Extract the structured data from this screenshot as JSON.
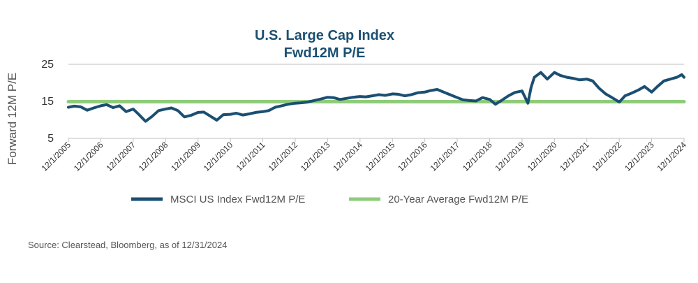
{
  "chart_data": {
    "type": "line",
    "title_lines": [
      "U.S. Large Cap Index",
      "Fwd12M P/E"
    ],
    "ylabel": "Forward 12M P/E",
    "xlabel": "",
    "y_ticks": [
      "25",
      "15",
      "5"
    ],
    "ylim": [
      5,
      25
    ],
    "x_tick_labels": [
      "12/1/2005",
      "12/1/2006",
      "12/1/2007",
      "12/1/2008",
      "12/1/2009",
      "12/1/2010",
      "12/1/2011",
      "12/1/2012",
      "12/1/2013",
      "12/1/2014",
      "12/1/2015",
      "12/1/2016",
      "12/1/2017",
      "12/1/2018",
      "12/1/2019",
      "12/1/2020",
      "12/1/2021",
      "12/1/2022",
      "12/1/2023",
      "12/1/2024"
    ],
    "grid": "horizontal",
    "legend_position": "bottom",
    "series": [
      {
        "name": "MSCI US Index Fwd12M P/E",
        "color": "#1b4f72",
        "x": [
          2005.92,
          2006.1,
          2006.3,
          2006.5,
          2006.7,
          2006.92,
          2007.1,
          2007.3,
          2007.5,
          2007.7,
          2007.92,
          2008.1,
          2008.3,
          2008.5,
          2008.7,
          2008.92,
          2009.1,
          2009.3,
          2009.5,
          2009.7,
          2009.92,
          2010.1,
          2010.3,
          2010.5,
          2010.7,
          2010.92,
          2011.1,
          2011.3,
          2011.5,
          2011.7,
          2011.92,
          2012.1,
          2012.3,
          2012.5,
          2012.7,
          2012.92,
          2013.1,
          2013.3,
          2013.5,
          2013.7,
          2013.92,
          2014.1,
          2014.3,
          2014.5,
          2014.7,
          2014.92,
          2015.1,
          2015.3,
          2015.5,
          2015.7,
          2015.92,
          2016.1,
          2016.3,
          2016.5,
          2016.7,
          2016.92,
          2017.1,
          2017.3,
          2017.5,
          2017.7,
          2017.92,
          2018.1,
          2018.3,
          2018.5,
          2018.7,
          2018.92,
          2019.1,
          2019.3,
          2019.5,
          2019.7,
          2019.92,
          2020.1,
          2020.2,
          2020.3,
          2020.5,
          2020.7,
          2020.92,
          2021.1,
          2021.3,
          2021.5,
          2021.7,
          2021.92,
          2022.1,
          2022.3,
          2022.5,
          2022.7,
          2022.92,
          2023.1,
          2023.3,
          2023.5,
          2023.7,
          2023.92,
          2024.1,
          2024.3,
          2024.5,
          2024.7,
          2024.85,
          2024.92
        ],
        "y": [
          13.4,
          13.7,
          13.5,
          12.6,
          13.2,
          13.8,
          14.1,
          13.3,
          13.8,
          12.2,
          12.9,
          11.4,
          9.6,
          10.9,
          12.5,
          12.9,
          13.2,
          12.5,
          10.8,
          11.2,
          12.0,
          12.1,
          11.0,
          9.9,
          11.4,
          11.5,
          11.8,
          11.3,
          11.6,
          12.0,
          12.2,
          12.5,
          13.4,
          13.8,
          14.2,
          14.5,
          14.6,
          14.8,
          15.2,
          15.6,
          16.1,
          16.0,
          15.5,
          15.8,
          16.1,
          16.3,
          16.2,
          16.5,
          16.8,
          16.6,
          17.0,
          16.9,
          16.5,
          16.8,
          17.3,
          17.5,
          17.9,
          18.2,
          17.5,
          16.8,
          16.0,
          15.4,
          15.2,
          15.1,
          16.0,
          15.5,
          14.2,
          15.3,
          16.5,
          17.4,
          17.8,
          14.5,
          18.8,
          21.5,
          22.8,
          21.0,
          22.8,
          22.0,
          21.5,
          21.2,
          20.8,
          21.0,
          20.5,
          18.5,
          17.0,
          16.0,
          14.8,
          16.5,
          17.2,
          18.0,
          19.0,
          17.5,
          19.0,
          20.5,
          21.0,
          21.5,
          22.2,
          21.5
        ]
      },
      {
        "name": "20-Year Average Fwd12M P/E",
        "color": "#8fcc7a",
        "x": [
          2005.92,
          2024.92
        ],
        "y": [
          14.9,
          14.9
        ]
      }
    ]
  },
  "source_text": "Source: Clearstead, Bloomberg, as of 12/31/2024"
}
